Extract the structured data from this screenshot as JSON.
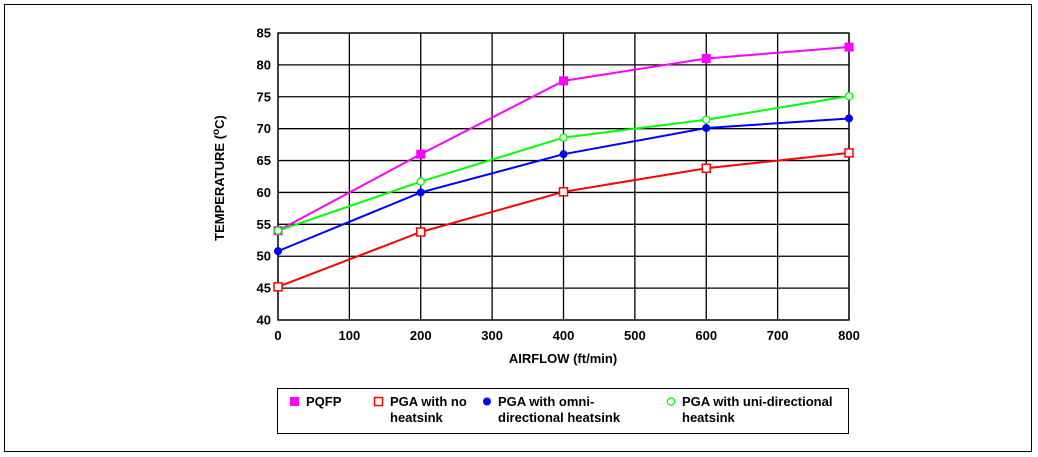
{
  "chart_data": {
    "type": "line",
    "title": "",
    "xlabel": "AIRFLOW (ft/min)",
    "ylabel_parts": {
      "before": "TEMPERATURE (",
      "sup": "o",
      "after": "C)"
    },
    "xlim": [
      0,
      800
    ],
    "ylim": [
      40,
      85
    ],
    "x_ticks": [
      0,
      100,
      200,
      300,
      400,
      500,
      600,
      700,
      800
    ],
    "y_ticks": [
      40,
      45,
      50,
      55,
      60,
      65,
      70,
      75,
      80,
      85
    ],
    "grid": true,
    "legend_position": "bottom",
    "x": [
      0,
      200,
      400,
      600,
      800
    ],
    "series": [
      {
        "name": "PQFP",
        "values": [
          54,
          66,
          77.5,
          81,
          82.8
        ],
        "color": "#ff00ff",
        "marker": "filled-square"
      },
      {
        "name": "PGA with no heatsink",
        "values": [
          45.2,
          53.8,
          60.1,
          63.8,
          66.2
        ],
        "color": "#ff0000",
        "marker": "open-square"
      },
      {
        "name": "PGA with omni-directional heatsink",
        "values": [
          50.8,
          60,
          66,
          70.1,
          71.6
        ],
        "color": "#0000ff",
        "marker": "filled-circle"
      },
      {
        "name": "PGA with uni-directional heatsink",
        "values": [
          54,
          61.7,
          68.6,
          71.4,
          75.1
        ],
        "color": "#00ff00",
        "marker": "open-circle"
      }
    ]
  },
  "legend": {
    "items": [
      {
        "label": "PQFP",
        "color": "#ff00ff",
        "marker": "filled-square"
      },
      {
        "label": "PGA with no heatsink",
        "color": "#ff0000",
        "marker": "open-square"
      },
      {
        "label": "PGA with omni-directional heatsink",
        "color": "#0000ff",
        "marker": "filled-circle"
      },
      {
        "label": "PGA with uni-directional heatsink",
        "color": "#00ff00",
        "marker": "open-circle"
      }
    ]
  }
}
